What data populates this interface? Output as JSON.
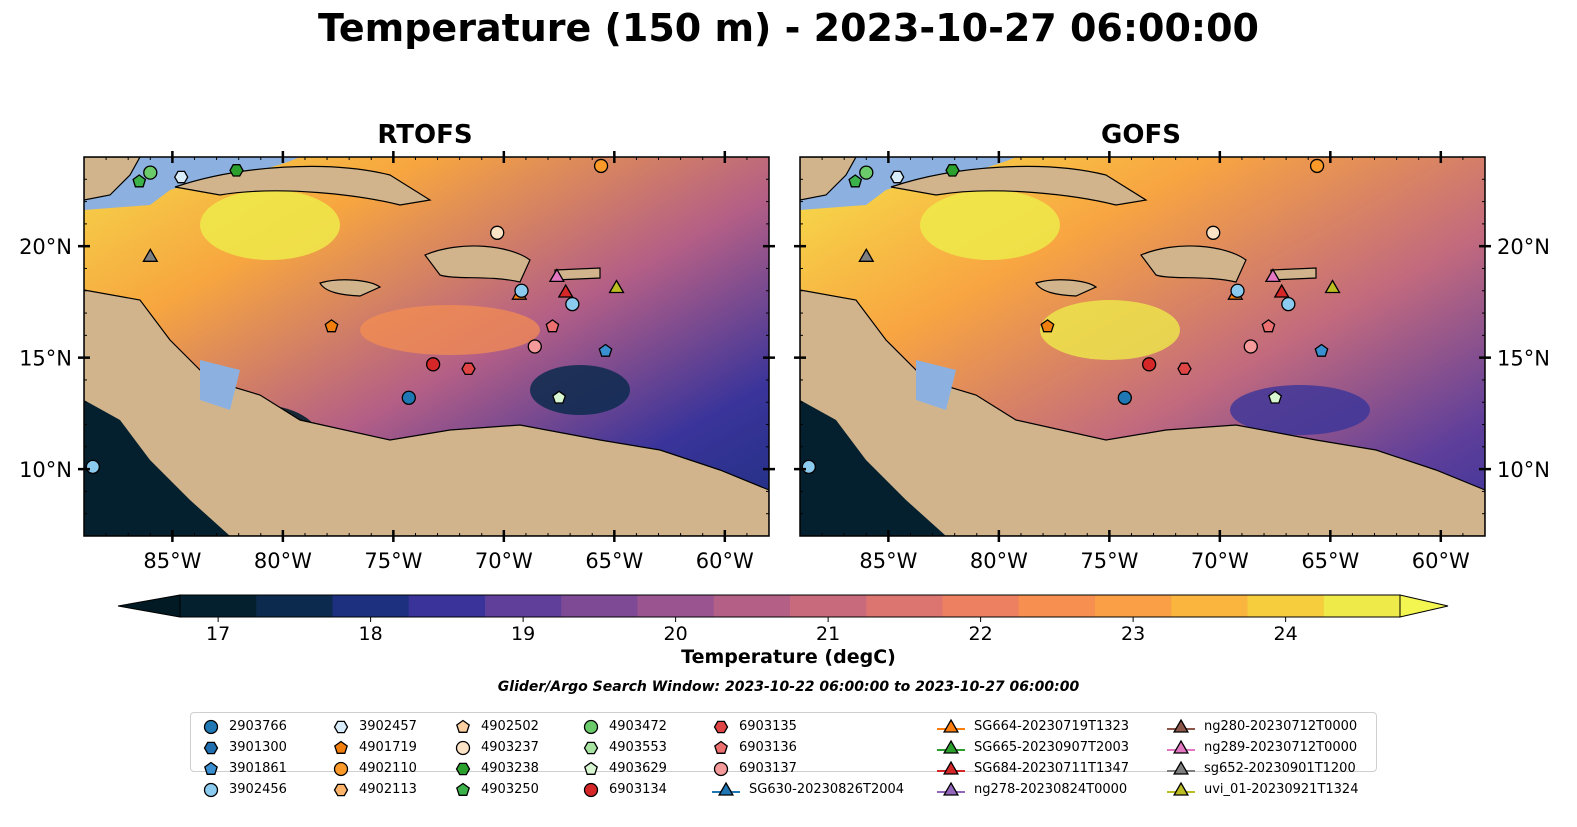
{
  "title": "Temperature (150 m) - 2023-10-27 06:00:00",
  "panels": [
    {
      "name": "rtofs",
      "title": "RTOFS"
    },
    {
      "name": "gofs",
      "title": "GOFS"
    }
  ],
  "axes": {
    "lon_ticks": [
      "85°W",
      "80°W",
      "75°W",
      "70°W",
      "65°W",
      "60°W"
    ],
    "lat_ticks": [
      "20°N",
      "15°N",
      "10°N"
    ],
    "lon_range": [
      -89.0,
      -58.0
    ],
    "lat_range": [
      7.0,
      24.0
    ]
  },
  "colorbar": {
    "label": "Temperature (degC)",
    "ticks": [
      "17",
      "18",
      "19",
      "20",
      "21",
      "22",
      "23",
      "24"
    ],
    "range": [
      16.75,
      24.75
    ],
    "colors": [
      "#04202e",
      "#0c2a4e",
      "#1d3080",
      "#3a349a",
      "#5f3f9a",
      "#7f4a95",
      "#9a5590",
      "#b45f86",
      "#c9697c",
      "#dc7470",
      "#ec8060",
      "#f68f50",
      "#fa9f45",
      "#f9b53d",
      "#f5cd3d",
      "#eeea4a"
    ],
    "extend": "both"
  },
  "search_window": "Glider/Argo Search Window: 2023-10-22 06:00:00 to 2023-10-27 06:00:00",
  "colors": {
    "land": "#d2b48c",
    "shelf": "#8cb1e0",
    "coast": "#000000"
  },
  "legend": [
    {
      "label": "2903766",
      "marker": "circle",
      "color": "#1f77b4"
    },
    {
      "label": "3901300",
      "marker": "hexagon",
      "color": "#1f6fb0"
    },
    {
      "label": "3901861",
      "marker": "pentagon",
      "color": "#3a8fd0"
    },
    {
      "label": "3902456",
      "marker": "circle",
      "color": "#8ccbf0"
    },
    {
      "label": "3902457",
      "marker": "hexagon",
      "color": "#d8ecfa"
    },
    {
      "label": "4901719",
      "marker": "pentagon",
      "color": "#f07f0e"
    },
    {
      "label": "4902110",
      "marker": "circle",
      "color": "#fb9a29"
    },
    {
      "label": "4902113",
      "marker": "hexagon",
      "color": "#fdb46a"
    },
    {
      "label": "4902502",
      "marker": "pentagon",
      "color": "#fdd0a2"
    },
    {
      "label": "4903237",
      "marker": "circle",
      "color": "#fde3c6"
    },
    {
      "label": "4903238",
      "marker": "hexagon",
      "color": "#2ca02c"
    },
    {
      "label": "4903250",
      "marker": "pentagon",
      "color": "#3cb34a"
    },
    {
      "label": "4903472",
      "marker": "circle",
      "color": "#6bcb6b"
    },
    {
      "label": "4903553",
      "marker": "hexagon",
      "color": "#a6e3a1"
    },
    {
      "label": "4903629",
      "marker": "pentagon",
      "color": "#d9f6d3"
    },
    {
      "label": "6903134",
      "marker": "circle",
      "color": "#d62728"
    },
    {
      "label": "6903135",
      "marker": "hexagon",
      "color": "#e04545"
    },
    {
      "label": "6903136",
      "marker": "pentagon",
      "color": "#ec7070"
    },
    {
      "label": "6903137",
      "marker": "circle",
      "color": "#f49a9a"
    },
    {
      "label": "SG630-20230826T2004",
      "marker": "triangle-line",
      "color": "#1f77b4"
    },
    {
      "label": "SG664-20230719T1323",
      "marker": "triangle-line",
      "color": "#ff7f0e"
    },
    {
      "label": "SG665-20230907T2003",
      "marker": "triangle-line",
      "color": "#2ca02c"
    },
    {
      "label": "SG684-20230711T1347",
      "marker": "triangle-line",
      "color": "#d62728"
    },
    {
      "label": "ng278-20230824T0000",
      "marker": "triangle-line",
      "color": "#9467bd"
    },
    {
      "label": "ng280-20230712T0000",
      "marker": "triangle-line",
      "color": "#8c564b"
    },
    {
      "label": "ng289-20230712T0000",
      "marker": "triangle-line",
      "color": "#e377c2"
    },
    {
      "label": "sg652-20230901T1200",
      "marker": "triangle-line",
      "color": "#7f7f7f"
    },
    {
      "label": "uvi_01-20230921T1324",
      "marker": "triangle-line",
      "color": "#bcbd22"
    }
  ],
  "platforms": [
    {
      "id": "4903250",
      "lon": -86.5,
      "lat": 22.9
    },
    {
      "id": "4903472",
      "lon": -86.0,
      "lat": 23.3
    },
    {
      "id": "3902457",
      "lon": -84.6,
      "lat": 23.1
    },
    {
      "id": "4903238",
      "lon": -82.1,
      "lat": 23.4
    },
    {
      "id": "4902110",
      "lon": -65.6,
      "lat": 23.6
    },
    {
      "id": "sg652-20230901T1200",
      "lon": -86.0,
      "lat": 19.5
    },
    {
      "id": "4903237",
      "lon": -70.3,
      "lat": 20.6
    },
    {
      "id": "4901719",
      "lon": -77.8,
      "lat": 16.4
    },
    {
      "id": "SG664-20230719T1323",
      "lon": -69.3,
      "lat": 17.8
    },
    {
      "id": "3902456",
      "lon": -69.2,
      "lat": 18.0
    },
    {
      "id": "ng289-20230712T0000",
      "lon": -67.6,
      "lat": 18.6
    },
    {
      "id": "SG684-20230711T1347",
      "lon": -67.2,
      "lat": 17.9
    },
    {
      "id": "3902456",
      "lon": -66.9,
      "lat": 17.4
    },
    {
      "id": "uvi_01-20230921T1324",
      "lon": -64.9,
      "lat": 18.1
    },
    {
      "id": "6903136",
      "lon": -67.8,
      "lat": 16.4
    },
    {
      "id": "6903137",
      "lon": -68.6,
      "lat": 15.5
    },
    {
      "id": "3901861",
      "lon": -65.4,
      "lat": 15.3
    },
    {
      "id": "6903134",
      "lon": -73.2,
      "lat": 14.7
    },
    {
      "id": "6903135",
      "lon": -71.6,
      "lat": 14.5
    },
    {
      "id": "2903766",
      "lon": -74.3,
      "lat": 13.2
    },
    {
      "id": "4903629",
      "lon": -67.5,
      "lat": 13.2
    },
    {
      "id": "3902456",
      "lon": -88.6,
      "lat": 10.1
    }
  ]
}
